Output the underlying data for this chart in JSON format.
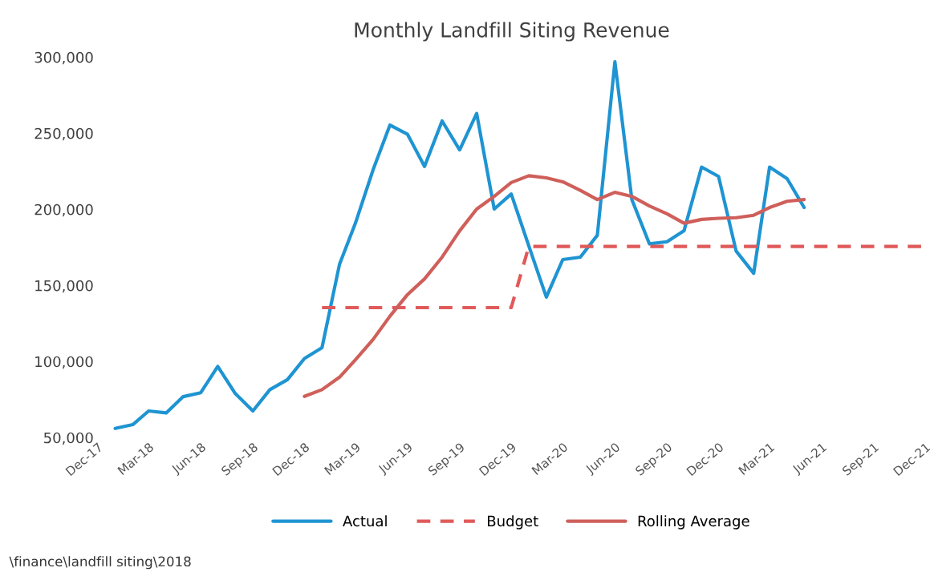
{
  "chart_data": {
    "type": "line",
    "title": "Monthly Landfill Siting Revenue",
    "xlim": [
      "2017-12",
      "2021-12"
    ],
    "xticks": [
      {
        "value": "2017-12",
        "label": "Dec-17"
      },
      {
        "value": "2018-03",
        "label": "Mar-18"
      },
      {
        "value": "2018-06",
        "label": "Jun-18"
      },
      {
        "value": "2018-09",
        "label": "Sep-18"
      },
      {
        "value": "2018-12",
        "label": "Dec-18"
      },
      {
        "value": "2019-03",
        "label": "Mar-19"
      },
      {
        "value": "2019-06",
        "label": "Jun-19"
      },
      {
        "value": "2019-09",
        "label": "Sep-19"
      },
      {
        "value": "2019-12",
        "label": "Dec-19"
      },
      {
        "value": "2020-03",
        "label": "Mar-20"
      },
      {
        "value": "2020-06",
        "label": "Jun-20"
      },
      {
        "value": "2020-09",
        "label": "Sep-20"
      },
      {
        "value": "2020-12",
        "label": "Dec-20"
      },
      {
        "value": "2021-03",
        "label": "Mar-21"
      },
      {
        "value": "2021-06",
        "label": "Jun-21"
      },
      {
        "value": "2021-09",
        "label": "Sep-21"
      },
      {
        "value": "2021-12",
        "label": "Dec-21"
      }
    ],
    "ylim": [
      50000,
      300000
    ],
    "yticks": [
      {
        "value": 50000,
        "label": "50,000"
      },
      {
        "value": 100000,
        "label": "100,000"
      },
      {
        "value": 150000,
        "label": "150,000"
      },
      {
        "value": 200000,
        "label": "200,000"
      },
      {
        "value": 250000,
        "label": "250,000"
      },
      {
        "value": 300000,
        "label": "300,000"
      }
    ],
    "grid": false,
    "legend": "bottom",
    "series": [
      {
        "name": "Actual",
        "color": "#1f94d2",
        "line_style": "solid",
        "x": [
          "2018-01",
          "2018-02",
          "2018-03",
          "2018-04",
          "2018-05",
          "2018-06",
          "2018-07",
          "2018-08",
          "2018-09",
          "2018-10",
          "2018-11",
          "2018-12",
          "2019-01",
          "2019-02",
          "2019-03",
          "2019-04",
          "2019-05",
          "2019-06",
          "2019-07",
          "2019-08",
          "2019-09",
          "2019-10",
          "2019-11",
          "2019-12",
          "2020-01",
          "2020-02",
          "2020-03",
          "2020-04",
          "2020-05",
          "2020-06",
          "2020-07",
          "2020-08",
          "2020-09",
          "2020-10",
          "2020-11",
          "2020-12",
          "2021-01",
          "2021-02",
          "2021-03",
          "2021-04",
          "2021-05"
        ],
        "values": [
          56000,
          58500,
          67500,
          66200,
          76900,
          79500,
          96800,
          78900,
          67500,
          81500,
          88100,
          102000,
          109100,
          164000,
          190900,
          225800,
          255400,
          249300,
          228200,
          258100,
          239100,
          263000,
          200200,
          210100,
          176000,
          142300,
          167000,
          168600,
          183000,
          297000,
          206400,
          177300,
          178700,
          185900,
          227800,
          221600,
          172600,
          158000,
          227800,
          220200,
          201200
        ]
      },
      {
        "name": "Budget",
        "color": "#e05a5a",
        "line_style": "dashed",
        "x": [
          "2019-01",
          "2019-02",
          "2019-03",
          "2019-04",
          "2019-05",
          "2019-06",
          "2019-07",
          "2019-08",
          "2019-09",
          "2019-10",
          "2019-11",
          "2019-12",
          "2020-01",
          "2020-02",
          "2020-03",
          "2020-04",
          "2020-05",
          "2020-06",
          "2020-07",
          "2020-08",
          "2020-09",
          "2020-10",
          "2020-11",
          "2020-12",
          "2021-01",
          "2021-02",
          "2021-03",
          "2021-04",
          "2021-05",
          "2021-06",
          "2021-07",
          "2021-08",
          "2021-09",
          "2021-10",
          "2021-11",
          "2021-12"
        ],
        "values": [
          135400,
          135400,
          135400,
          135400,
          135400,
          135400,
          135400,
          135400,
          135400,
          135400,
          135400,
          135400,
          175600,
          175600,
          175600,
          175600,
          175600,
          175600,
          175600,
          175600,
          175600,
          175600,
          175600,
          175600,
          175600,
          175600,
          175600,
          175600,
          175600,
          175600,
          175600,
          175600,
          175600,
          175600,
          175600,
          175600
        ]
      },
      {
        "name": "Rolling Average",
        "color": "#cf5f5a",
        "line_style": "solid",
        "x": [
          "2018-12",
          "2019-01",
          "2019-02",
          "2019-03",
          "2019-04",
          "2019-05",
          "2019-06",
          "2019-07",
          "2019-08",
          "2019-09",
          "2019-10",
          "2019-11",
          "2019-12",
          "2020-01",
          "2020-02",
          "2020-03",
          "2020-04",
          "2020-05",
          "2020-06",
          "2020-07",
          "2020-08",
          "2020-09",
          "2020-10",
          "2020-11",
          "2020-12",
          "2021-01",
          "2021-02",
          "2021-03",
          "2021-04",
          "2021-05"
        ],
        "values": [
          77100,
          81500,
          89700,
          101100,
          114400,
          129800,
          144000,
          154300,
          168600,
          185900,
          200200,
          208500,
          217600,
          222100,
          220700,
          218100,
          212500,
          206400,
          211200,
          208500,
          202200,
          197100,
          190900,
          193400,
          194100,
          194500,
          196100,
          201200,
          205300,
          206400
        ]
      }
    ],
    "annotations": [
      "\\finance\\landfill siting\\2018"
    ]
  }
}
